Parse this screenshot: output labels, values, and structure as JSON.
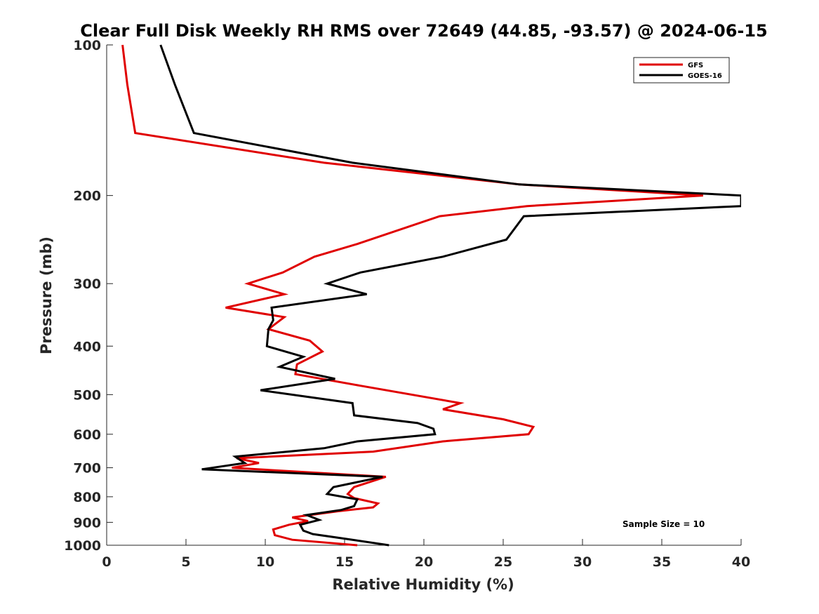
{
  "chart_data": {
    "type": "line",
    "title": "Clear Full Disk Weekly RH RMS over 72649 (44.85, -93.57) @ 2024-06-15",
    "xlabel": "Relative Humidity (%)",
    "ylabel": "Pressure (mb)",
    "xlim": [
      0,
      40
    ],
    "ylim": [
      100,
      1000
    ],
    "yscale": "log",
    "yreversed": true,
    "xticks": [
      0,
      5,
      10,
      15,
      20,
      25,
      30,
      35,
      40
    ],
    "yticks": [
      100,
      200,
      300,
      400,
      500,
      600,
      700,
      800,
      900,
      1000
    ],
    "grid": false,
    "legend_position": "top-right",
    "annotation": "Sample Size = 10",
    "series": [
      {
        "name": "GFS",
        "color": "#e00000",
        "points": [
          [
            1.0,
            100
          ],
          [
            1.3,
            120
          ],
          [
            1.8,
            150
          ],
          [
            13.7,
            172
          ],
          [
            26.0,
            190
          ],
          [
            37.6,
            200
          ],
          [
            26.5,
            210
          ],
          [
            21.0,
            220
          ],
          [
            15.8,
            250
          ],
          [
            13.1,
            265
          ],
          [
            11.1,
            285
          ],
          [
            8.9,
            300
          ],
          [
            11.2,
            315
          ],
          [
            7.5,
            335
          ],
          [
            11.2,
            350
          ],
          [
            10.2,
            370
          ],
          [
            12.8,
            390
          ],
          [
            13.6,
            410
          ],
          [
            12.0,
            435
          ],
          [
            11.9,
            455
          ],
          [
            16.0,
            480
          ],
          [
            22.3,
            520
          ],
          [
            21.2,
            535
          ],
          [
            25.0,
            560
          ],
          [
            26.9,
            580
          ],
          [
            26.6,
            600
          ],
          [
            21.2,
            620
          ],
          [
            16.8,
            650
          ],
          [
            8.2,
            670
          ],
          [
            9.6,
            685
          ],
          [
            7.9,
            700
          ],
          [
            17.6,
            730
          ],
          [
            15.6,
            765
          ],
          [
            15.2,
            790
          ],
          [
            15.6,
            805
          ],
          [
            17.1,
            825
          ],
          [
            16.8,
            840
          ],
          [
            14.6,
            855
          ],
          [
            11.7,
            880
          ],
          [
            12.7,
            895
          ],
          [
            11.5,
            910
          ],
          [
            10.5,
            930
          ],
          [
            10.6,
            955
          ],
          [
            11.7,
            975
          ],
          [
            15.8,
            1000
          ]
        ]
      },
      {
        "name": "GOES-16",
        "color": "#000000",
        "points": [
          [
            3.4,
            100
          ],
          [
            4.3,
            120
          ],
          [
            5.5,
            150
          ],
          [
            15.5,
            172
          ],
          [
            26.0,
            190
          ],
          [
            40.0,
            200
          ],
          [
            40.0,
            210
          ],
          [
            26.3,
            220
          ],
          [
            25.2,
            245
          ],
          [
            21.2,
            265
          ],
          [
            16.0,
            285
          ],
          [
            13.9,
            300
          ],
          [
            16.4,
            315
          ],
          [
            10.4,
            335
          ],
          [
            10.5,
            355
          ],
          [
            10.2,
            370
          ],
          [
            10.1,
            400
          ],
          [
            12.4,
            420
          ],
          [
            10.9,
            440
          ],
          [
            14.4,
            465
          ],
          [
            9.7,
            490
          ],
          [
            15.5,
            520
          ],
          [
            15.6,
            550
          ],
          [
            19.6,
            570
          ],
          [
            20.6,
            585
          ],
          [
            20.7,
            600
          ],
          [
            15.8,
            620
          ],
          [
            13.7,
            640
          ],
          [
            8.1,
            665
          ],
          [
            8.7,
            685
          ],
          [
            6.0,
            705
          ],
          [
            17.4,
            730
          ],
          [
            14.3,
            765
          ],
          [
            13.9,
            790
          ],
          [
            15.8,
            810
          ],
          [
            15.6,
            835
          ],
          [
            14.8,
            850
          ],
          [
            12.6,
            870
          ],
          [
            13.4,
            890
          ],
          [
            12.2,
            910
          ],
          [
            12.4,
            935
          ],
          [
            13.0,
            950
          ],
          [
            15.0,
            970
          ],
          [
            17.8,
            1000
          ]
        ]
      }
    ]
  }
}
